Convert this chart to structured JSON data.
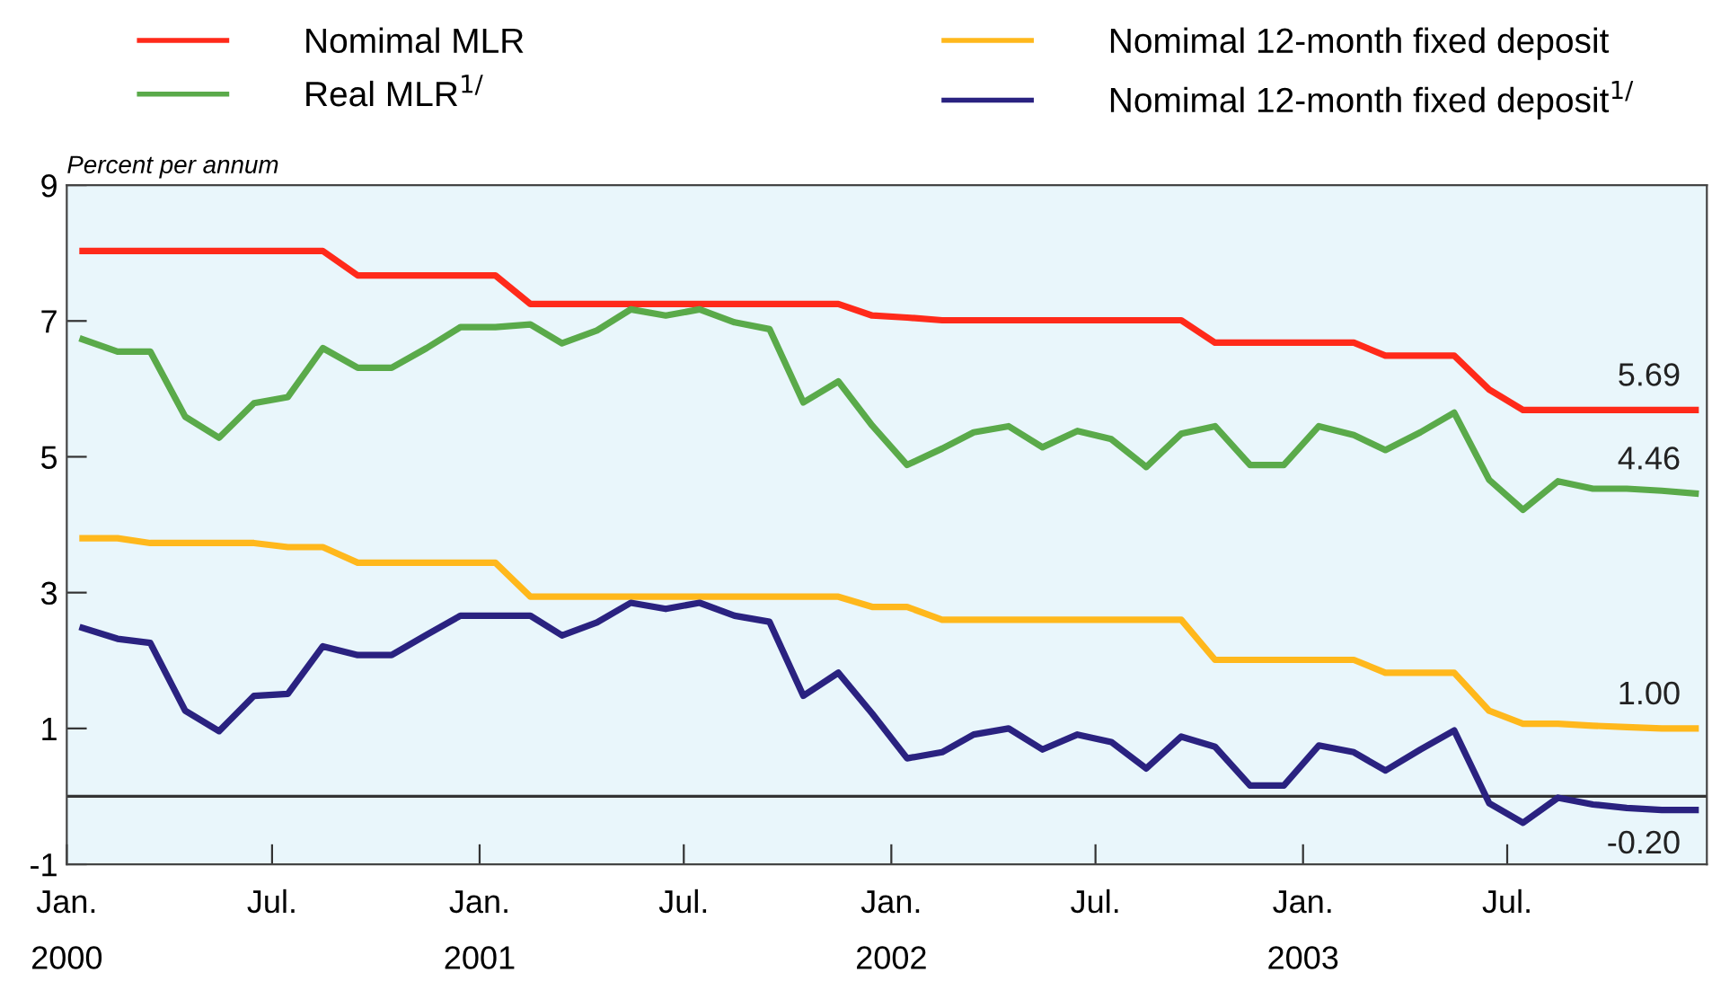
{
  "chart_data": {
    "type": "line",
    "ylabel": "Percent per annum",
    "x": [
      "2000-01-15",
      "2000-02-15",
      "2000-03-15",
      "2000-04-15",
      "2000-05-15",
      "2000-06-15",
      "2000-07-15",
      "2000-08-15",
      "2000-09-15",
      "2000-10-15",
      "2000-11-15",
      "2000-12-15",
      "2001-01-15",
      "2001-02-15",
      "2001-03-15",
      "2001-04-15",
      "2001-05-15",
      "2001-06-15",
      "2001-07-15",
      "2001-08-15",
      "2001-09-15",
      "2001-10-15",
      "2001-11-15",
      "2001-12-15",
      "2002-01-15",
      "2002-02-15",
      "2002-03-15",
      "2002-04-15",
      "2002-05-15",
      "2002-06-15",
      "2002-07-15",
      "2002-08-15",
      "2002-09-15",
      "2002-10-15",
      "2002-11-15",
      "2002-12-15",
      "2003-01-15",
      "2003-02-15",
      "2003-03-15",
      "2003-04-15",
      "2003-05-15",
      "2003-06-15",
      "2003-07-15",
      "2003-08-15",
      "2003-09-15",
      "2003-10-15",
      "2003-11-15",
      "2003-12-15"
    ],
    "series": [
      {
        "name": "Nomimal MLR",
        "color": "#ff2a1a",
        "values": [
          8.03,
          8.03,
          8.03,
          8.03,
          8.03,
          8.03,
          8.03,
          8.03,
          7.67,
          7.67,
          7.67,
          7.67,
          7.67,
          7.25,
          7.25,
          7.25,
          7.25,
          7.25,
          7.25,
          7.25,
          7.25,
          7.25,
          7.25,
          7.08,
          7.05,
          7.01,
          7.01,
          7.01,
          7.01,
          7.01,
          7.01,
          7.01,
          7.01,
          6.68,
          6.68,
          6.68,
          6.68,
          6.68,
          6.49,
          6.49,
          6.49,
          5.99,
          5.69,
          5.69,
          5.69,
          5.69,
          5.69,
          5.69
        ],
        "value_labels": [
          null,
          null,
          null,
          null,
          null,
          null,
          null,
          null,
          null,
          null,
          null,
          null,
          null,
          null,
          null,
          null,
          null,
          null,
          null,
          null,
          null,
          null,
          null,
          null,
          null,
          null,
          null,
          null,
          null,
          null,
          null,
          null,
          null,
          null,
          null,
          null,
          null,
          null,
          null,
          null,
          null,
          null,
          null,
          null,
          null,
          null,
          null,
          "5.69"
        ]
      },
      {
        "name": "Real MLR$^{1/}$",
        "color": "#5aaa4a",
        "values": [
          6.73,
          6.55,
          6.55,
          5.59,
          5.28,
          5.79,
          5.88,
          6.6,
          6.31,
          6.31,
          6.6,
          6.91,
          6.91,
          6.95,
          6.67,
          6.86,
          7.17,
          7.08,
          7.17,
          6.98,
          6.88,
          5.8,
          6.11,
          5.46,
          4.88,
          5.12,
          5.36,
          5.45,
          5.14,
          5.38,
          5.26,
          4.85,
          5.34,
          5.45,
          4.88,
          4.88,
          5.45,
          5.32,
          5.1,
          5.36,
          5.65,
          4.66,
          4.22,
          4.64,
          4.53,
          4.53,
          4.5,
          4.46
        ],
        "value_labels": [
          null,
          null,
          null,
          null,
          null,
          null,
          null,
          null,
          null,
          null,
          null,
          null,
          null,
          null,
          null,
          null,
          null,
          null,
          null,
          null,
          null,
          null,
          null,
          null,
          null,
          null,
          null,
          null,
          null,
          null,
          null,
          null,
          null,
          null,
          null,
          null,
          null,
          null,
          null,
          null,
          null,
          null,
          null,
          null,
          null,
          null,
          null,
          "4.46"
        ]
      },
      {
        "name": "Nomimal 12-month fixed deposit",
        "color": "#ffb81c",
        "values": [
          3.8,
          3.8,
          3.73,
          3.73,
          3.73,
          3.73,
          3.67,
          3.67,
          3.44,
          3.44,
          3.44,
          3.44,
          3.44,
          2.94,
          2.94,
          2.94,
          2.94,
          2.94,
          2.94,
          2.94,
          2.94,
          2.94,
          2.94,
          2.79,
          2.79,
          2.6,
          2.6,
          2.6,
          2.6,
          2.6,
          2.6,
          2.6,
          2.6,
          2.01,
          2.01,
          2.01,
          2.01,
          2.01,
          1.82,
          1.82,
          1.82,
          1.26,
          1.07,
          1.07,
          1.04,
          1.02,
          1.0,
          1.0
        ],
        "value_labels": [
          null,
          null,
          null,
          null,
          null,
          null,
          null,
          null,
          null,
          null,
          null,
          null,
          null,
          null,
          null,
          null,
          null,
          null,
          null,
          null,
          null,
          null,
          null,
          null,
          null,
          null,
          null,
          null,
          null,
          null,
          null,
          null,
          null,
          null,
          null,
          null,
          null,
          null,
          null,
          null,
          null,
          null,
          null,
          null,
          null,
          null,
          null,
          "1.00"
        ]
      },
      {
        "name": "Nomimal 12-month fixed deposit$^{1/}$",
        "color": "#2a2280",
        "values": [
          2.48,
          2.32,
          2.26,
          1.26,
          0.96,
          1.48,
          1.51,
          2.21,
          2.08,
          2.08,
          2.38,
          2.66,
          2.66,
          2.66,
          2.37,
          2.56,
          2.85,
          2.76,
          2.85,
          2.66,
          2.57,
          1.48,
          1.82,
          1.22,
          0.56,
          0.65,
          0.91,
          1.0,
          0.69,
          0.91,
          0.8,
          0.41,
          0.88,
          0.73,
          0.16,
          0.16,
          0.75,
          0.65,
          0.38,
          0.69,
          0.97,
          -0.1,
          -0.39,
          -0.02,
          -0.12,
          -0.17,
          -0.2,
          -0.2
        ],
        "value_labels": [
          null,
          null,
          null,
          null,
          null,
          null,
          null,
          null,
          null,
          null,
          null,
          null,
          null,
          null,
          null,
          null,
          null,
          null,
          null,
          null,
          null,
          null,
          null,
          null,
          null,
          null,
          null,
          null,
          null,
          null,
          null,
          null,
          null,
          null,
          null,
          null,
          null,
          null,
          null,
          null,
          null,
          null,
          null,
          null,
          null,
          null,
          null,
          "-0.20"
        ]
      }
    ],
    "xlim": [
      "2000-01-01",
      "2003-12-25"
    ],
    "xticks": [
      {
        "value": "2000-01-01",
        "label": "Jan.\n2000"
      },
      {
        "value": "2000-07-01",
        "label": "Jul."
      },
      {
        "value": "2001-01-01",
        "label": "Jan.\n2001"
      },
      {
        "value": "2001-07-01",
        "label": "Jul."
      },
      {
        "value": "2002-01-01",
        "label": "Jan.\n2002"
      },
      {
        "value": "2002-07-01",
        "label": "Jul."
      },
      {
        "value": "2003-01-01",
        "label": "Jan.\n2003"
      },
      {
        "value": "2003-07-01",
        "label": "Jul."
      }
    ],
    "ylim": [
      -1,
      9
    ],
    "yticks": [
      -1,
      1,
      3,
      5,
      7,
      9
    ],
    "ref_lines": [
      {
        "axis": "y",
        "value": 0,
        "label": null,
        "color": "#333333"
      }
    ],
    "grid": false,
    "legend": "top",
    "marker": "none",
    "line_style": "solid"
  }
}
